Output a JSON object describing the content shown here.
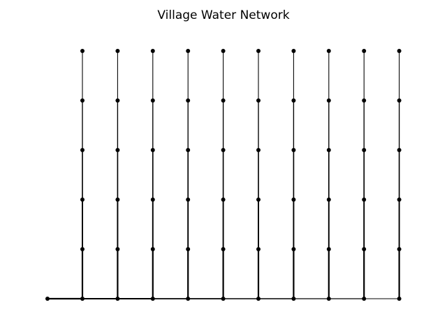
{
  "figure": {
    "title": "Village Water Network"
  },
  "colors": {
    "background": "#ffffff",
    "pipe": "#000000",
    "node": "#000000"
  },
  "chart_data": {
    "type": "network",
    "title": "Village Water Network",
    "axes_visible": false,
    "grid": false,
    "source_node": "source",
    "main_line": [
      "source",
      "j1",
      "j2",
      "j3",
      "j4",
      "j5",
      "j6",
      "j7",
      "j8",
      "j9",
      "j10"
    ],
    "branches": [
      {
        "junction": "j1",
        "nodes": 5
      },
      {
        "junction": "j2",
        "nodes": 5
      },
      {
        "junction": "j3",
        "nodes": 5
      },
      {
        "junction": "j4",
        "nodes": 5
      },
      {
        "junction": "j5",
        "nodes": 5
      },
      {
        "junction": "j6",
        "nodes": 5
      },
      {
        "junction": "j7",
        "nodes": 5
      },
      {
        "junction": "j8",
        "nodes": 5
      },
      {
        "junction": "j9",
        "nodes": 5
      },
      {
        "junction": "j10",
        "nodes": 5
      }
    ]
  }
}
